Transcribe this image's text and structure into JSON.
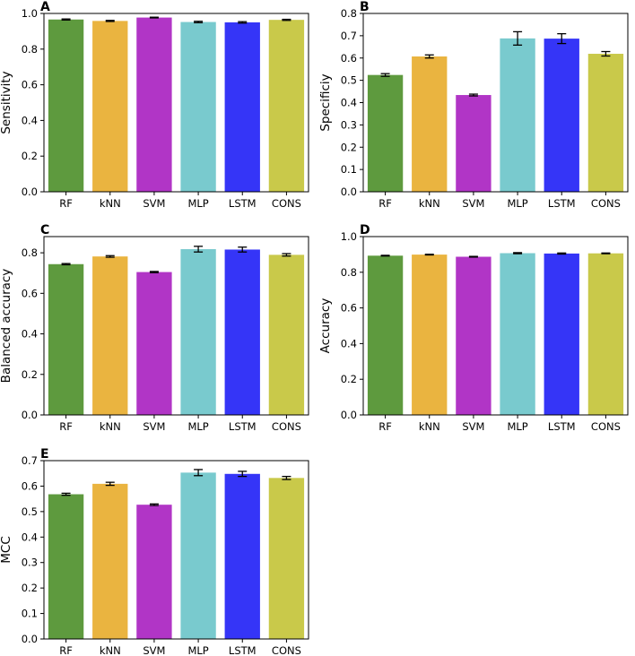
{
  "chart_data": [
    {
      "type": "bar",
      "panel": "A",
      "ylabel": "Sensitivity",
      "categories": [
        "RF",
        "kNN",
        "SVM",
        "MLP",
        "LSTM",
        "CONS"
      ],
      "values": [
        0.966,
        0.958,
        0.977,
        0.952,
        0.95,
        0.964
      ],
      "errors": [
        0.003,
        0.003,
        0.002,
        0.004,
        0.004,
        0.003
      ],
      "ylim": [
        0,
        1.0
      ],
      "yticks": [
        "0.0",
        "0.2",
        "0.4",
        "0.6",
        "0.8",
        "1.0"
      ]
    },
    {
      "type": "bar",
      "panel": "B",
      "ylabel": "Specificiy",
      "categories": [
        "RF",
        "kNN",
        "SVM",
        "MLP",
        "LSTM",
        "CONS"
      ],
      "values": [
        0.524,
        0.607,
        0.434,
        0.688,
        0.687,
        0.619
      ],
      "errors": [
        0.006,
        0.007,
        0.004,
        0.03,
        0.022,
        0.01
      ],
      "ylim": [
        0,
        0.8
      ],
      "yticks": [
        "0.0",
        "0.1",
        "0.2",
        "0.3",
        "0.4",
        "0.5",
        "0.6",
        "0.7",
        "0.8"
      ]
    },
    {
      "type": "bar",
      "panel": "C",
      "ylabel": "Balanced accuracy",
      "categories": [
        "RF",
        "kNN",
        "SVM",
        "MLP",
        "LSTM",
        "CONS"
      ],
      "values": [
        0.744,
        0.782,
        0.705,
        0.818,
        0.816,
        0.79
      ],
      "errors": [
        0.003,
        0.004,
        0.003,
        0.014,
        0.012,
        0.006
      ],
      "ylim": [
        0,
        0.88
      ],
      "yticks": [
        "0.0",
        "0.2",
        "0.4",
        "0.6",
        "0.8"
      ]
    },
    {
      "type": "bar",
      "panel": "D",
      "ylabel": "Accuracy",
      "categories": [
        "RF",
        "kNN",
        "SVM",
        "MLP",
        "LSTM",
        "CONS"
      ],
      "values": [
        0.893,
        0.899,
        0.887,
        0.907,
        0.905,
        0.906
      ],
      "errors": [
        0.002,
        0.002,
        0.002,
        0.003,
        0.003,
        0.002
      ],
      "ylim": [
        0,
        1.0
      ],
      "yticks": [
        "0.0",
        "0.2",
        "0.4",
        "0.6",
        "0.8",
        "1.0"
      ]
    },
    {
      "type": "bar",
      "panel": "E",
      "ylabel": "MCC",
      "categories": [
        "RF",
        "kNN",
        "SVM",
        "MLP",
        "LSTM",
        "CONS"
      ],
      "values": [
        0.568,
        0.609,
        0.527,
        0.653,
        0.648,
        0.632
      ],
      "errors": [
        0.004,
        0.006,
        0.003,
        0.012,
        0.01,
        0.006
      ],
      "ylim": [
        0,
        0.7
      ],
      "yticks": [
        "0.0",
        "0.1",
        "0.2",
        "0.3",
        "0.4",
        "0.5",
        "0.6",
        "0.7"
      ]
    }
  ],
  "colors": [
    "#5e9a3e",
    "#eab440",
    "#b135c6",
    "#79cace",
    "#3535f7",
    "#c9c94a"
  ]
}
